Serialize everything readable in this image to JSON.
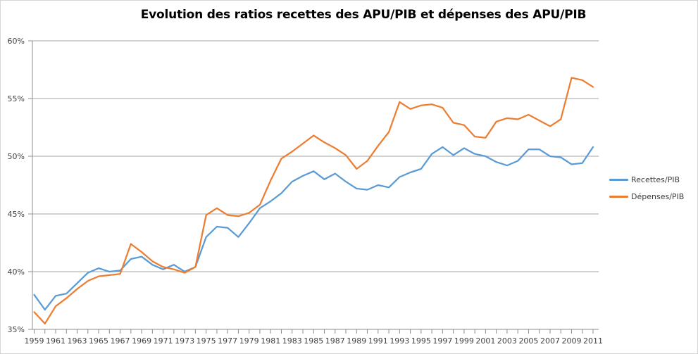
{
  "chart_data": {
    "type": "line",
    "title": "Evolution des ratios recettes des APU/PIB et dépenses des APU/PIB",
    "x": [
      1959,
      1960,
      1961,
      1962,
      1963,
      1964,
      1965,
      1966,
      1967,
      1968,
      1969,
      1970,
      1971,
      1972,
      1973,
      1974,
      1975,
      1976,
      1977,
      1978,
      1979,
      1980,
      1981,
      1982,
      1983,
      1984,
      1985,
      1986,
      1987,
      1988,
      1989,
      1990,
      1991,
      1992,
      1993,
      1994,
      1995,
      1996,
      1997,
      1998,
      1999,
      2000,
      2001,
      2002,
      2003,
      2004,
      2005,
      2006,
      2007,
      2008,
      2009,
      2010,
      2011
    ],
    "x_tick_label_step": 2,
    "series": [
      {
        "name": "Recettes/PIB",
        "color": "#5B9BD5",
        "values": [
          38.0,
          36.7,
          37.9,
          38.1,
          39.0,
          39.9,
          40.3,
          40.0,
          40.1,
          41.1,
          41.3,
          40.6,
          40.2,
          40.6,
          40.0,
          40.4,
          43.0,
          43.9,
          43.8,
          43.0,
          44.2,
          45.5,
          46.1,
          46.8,
          47.8,
          48.3,
          48.7,
          48.0,
          48.5,
          47.8,
          47.2,
          47.1,
          47.5,
          47.3,
          48.2,
          48.6,
          48.9,
          50.2,
          50.8,
          50.1,
          50.7,
          50.2,
          50.0,
          49.5,
          49.2,
          49.6,
          50.6,
          50.6,
          50.0,
          49.9,
          49.3,
          49.4,
          50.8
        ]
      },
      {
        "name": "Dépenses/PIB",
        "color": "#ED7D31",
        "values": [
          36.5,
          35.5,
          37.0,
          37.7,
          38.5,
          39.2,
          39.6,
          39.7,
          39.8,
          42.4,
          41.7,
          40.9,
          40.4,
          40.2,
          39.9,
          40.4,
          44.9,
          45.5,
          44.9,
          44.8,
          45.1,
          45.8,
          47.9,
          49.8,
          50.4,
          51.1,
          51.8,
          51.2,
          50.7,
          50.1,
          48.9,
          49.6,
          50.9,
          52.1,
          54.7,
          54.1,
          54.4,
          54.5,
          54.2,
          52.9,
          52.7,
          51.7,
          51.6,
          53.0,
          53.3,
          53.2,
          53.6,
          53.1,
          52.6,
          53.2,
          56.8,
          56.6,
          56.0
        ]
      }
    ],
    "ylim": [
      35,
      60
    ],
    "ytick_values": [
      35,
      40,
      45,
      50,
      55,
      60
    ],
    "yticks": [
      "35%",
      "40%",
      "45%",
      "50%",
      "55%",
      "60%"
    ],
    "grid": "horizontal",
    "legend_position": "right",
    "grid_color": "#A6A6A6",
    "axis_color": "#8C8C8C"
  }
}
